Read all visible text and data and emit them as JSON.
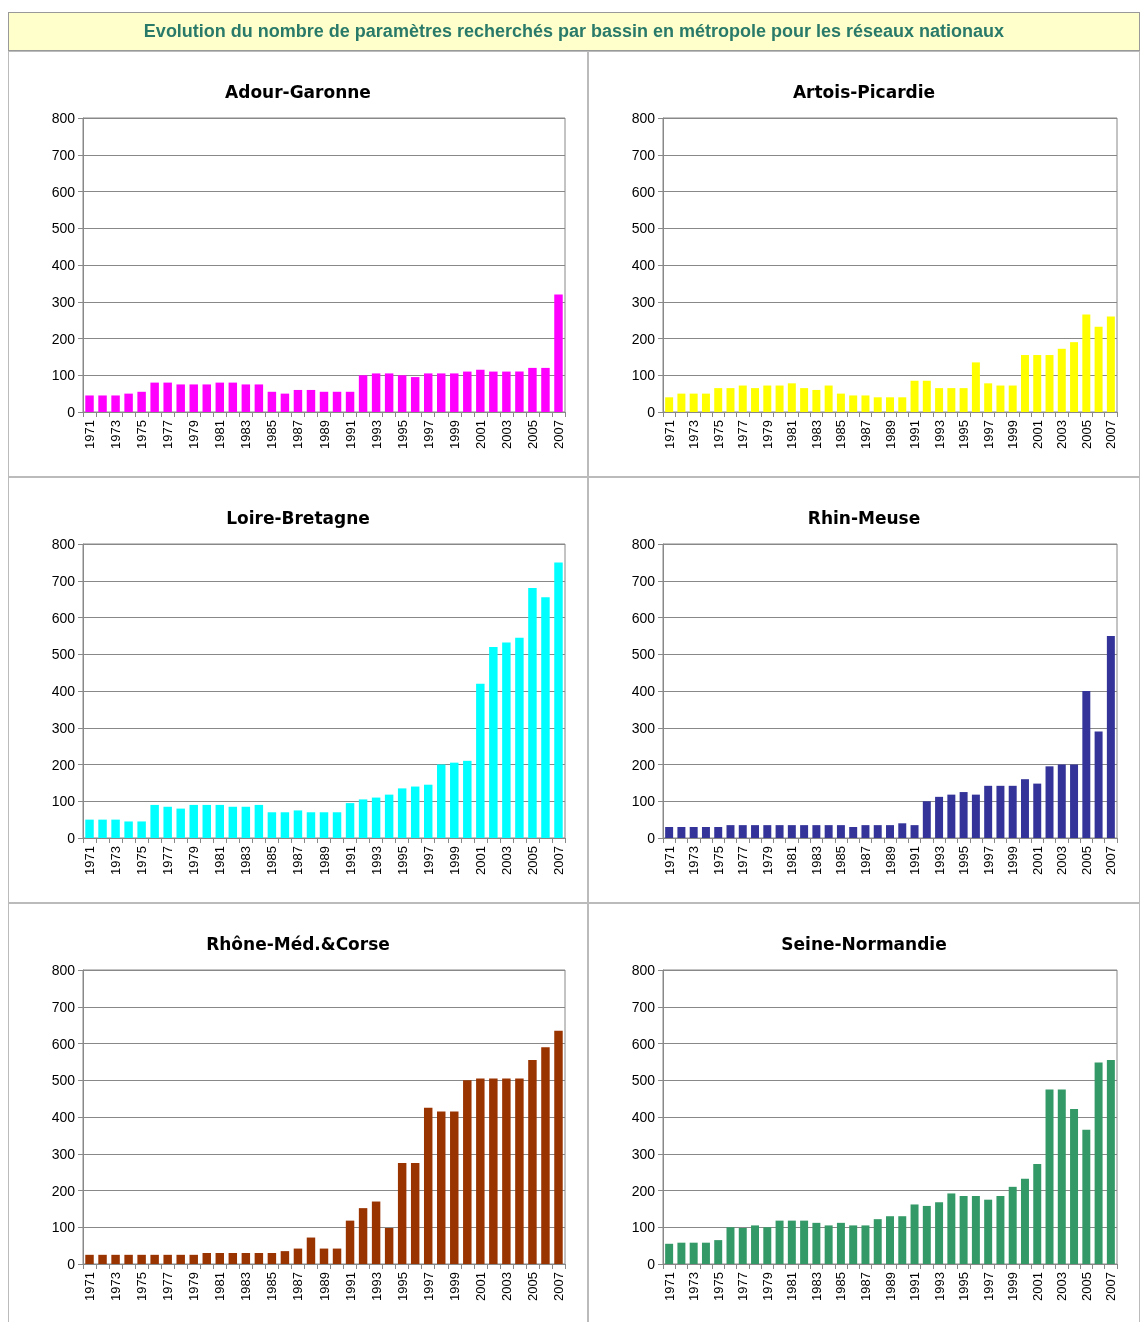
{
  "chart_data": [
    {
      "type": "other",
      "title": "Evolution du nombre de paramètres recherchés par bassin en métropole pour les réseaux nationaux"
    },
    {
      "type": "bar",
      "title": "Adour-Garonne",
      "categories": [
        "1971",
        null,
        "1973",
        null,
        "1975",
        null,
        "1977",
        null,
        "1979",
        null,
        "1981",
        null,
        "1983",
        null,
        "1985",
        null,
        "1987",
        null,
        "1989",
        null,
        "1991",
        null,
        "1993",
        null,
        "1995",
        null,
        "1997",
        null,
        "1999",
        null,
        "2001",
        null,
        "2003",
        null,
        "2005",
        null,
        "2007"
      ],
      "color": "#ff00ff",
      "values": [
        45,
        45,
        45,
        50,
        55,
        80,
        80,
        75,
        75,
        75,
        80,
        80,
        75,
        75,
        55,
        50,
        60,
        60,
        55,
        55,
        55,
        100,
        105,
        105,
        100,
        95,
        105,
        105,
        105,
        110,
        115,
        110,
        110,
        110,
        120,
        120,
        320
      ],
      "ylim": [
        0,
        800
      ],
      "yticks": [
        0,
        100,
        200,
        300,
        400,
        500,
        600,
        700,
        800
      ],
      "grid": "y"
    },
    {
      "type": "bar",
      "title": "Artois-Picardie",
      "categories": [
        "1971",
        null,
        "1973",
        null,
        "1975",
        null,
        "1977",
        null,
        "1979",
        null,
        "1981",
        null,
        "1983",
        null,
        "1985",
        null,
        "1987",
        null,
        "1989",
        null,
        "1991",
        null,
        "1993",
        null,
        "1995",
        null,
        "1997",
        null,
        "1999",
        null,
        "2001",
        null,
        "2003",
        null,
        "2005",
        null,
        "2007"
      ],
      "color": "#ffff00",
      "values": [
        40,
        50,
        50,
        50,
        65,
        65,
        72,
        65,
        72,
        72,
        78,
        65,
        60,
        72,
        50,
        45,
        45,
        40,
        40,
        40,
        85,
        85,
        65,
        65,
        65,
        135,
        78,
        72,
        72,
        155,
        155,
        155,
        172,
        190,
        265,
        232,
        260
      ],
      "ylim": [
        0,
        800
      ],
      "yticks": [
        0,
        100,
        200,
        300,
        400,
        500,
        600,
        700,
        800
      ],
      "grid": "y"
    },
    {
      "type": "bar",
      "title": "Loire-Bretagne",
      "categories": [
        "1971",
        null,
        "1973",
        null,
        "1975",
        null,
        "1977",
        null,
        "1979",
        null,
        "1981",
        null,
        "1983",
        null,
        "1985",
        null,
        "1987",
        null,
        "1989",
        null,
        "1991",
        null,
        "1993",
        null,
        "1995",
        null,
        "1997",
        null,
        "1999",
        null,
        "2001",
        null,
        "2003",
        null,
        "2005",
        null,
        "2007"
      ],
      "color": "#00ffff",
      "values": [
        50,
        50,
        50,
        45,
        45,
        90,
        85,
        80,
        90,
        90,
        90,
        85,
        85,
        90,
        70,
        70,
        75,
        70,
        70,
        70,
        95,
        105,
        110,
        118,
        135,
        140,
        145,
        200,
        205,
        210,
        420,
        520,
        532,
        545,
        680,
        655,
        750
      ],
      "ylim": [
        0,
        800
      ],
      "yticks": [
        0,
        100,
        200,
        300,
        400,
        500,
        600,
        700,
        800
      ],
      "grid": "y"
    },
    {
      "type": "bar",
      "title": "Rhin-Meuse",
      "categories": [
        "1971",
        null,
        "1973",
        null,
        "1975",
        null,
        "1977",
        null,
        "1979",
        null,
        "1981",
        null,
        "1983",
        null,
        "1985",
        null,
        "1987",
        null,
        "1989",
        null,
        "1991",
        null,
        "1993",
        null,
        "1995",
        null,
        "1997",
        null,
        "1999",
        null,
        "2001",
        null,
        "2003",
        null,
        "2005",
        null,
        "2007"
      ],
      "color": "#333399",
      "values": [
        30,
        30,
        30,
        30,
        30,
        35,
        35,
        35,
        35,
        35,
        35,
        35,
        35,
        35,
        35,
        30,
        35,
        35,
        35,
        40,
        35,
        100,
        112,
        118,
        125,
        118,
        142,
        142,
        142,
        160,
        148,
        195,
        200,
        200,
        400,
        290,
        550
      ],
      "ylim": [
        0,
        800
      ],
      "yticks": [
        0,
        100,
        200,
        300,
        400,
        500,
        600,
        700,
        800
      ],
      "grid": "y"
    },
    {
      "type": "bar",
      "title": "Rhône-Méd.&Corse",
      "categories": [
        "1971",
        null,
        "1973",
        null,
        "1975",
        null,
        "1977",
        null,
        "1979",
        null,
        "1981",
        null,
        "1983",
        null,
        "1985",
        null,
        "1987",
        null,
        "1989",
        null,
        "1991",
        null,
        "1993",
        null,
        "1995",
        null,
        "1997",
        null,
        "1999",
        null,
        "2001",
        null,
        "2003",
        null,
        "2005",
        null,
        "2007"
      ],
      "color": "#993300",
      "values": [
        25,
        25,
        25,
        25,
        25,
        25,
        25,
        25,
        25,
        30,
        30,
        30,
        30,
        30,
        30,
        35,
        42,
        72,
        42,
        42,
        118,
        152,
        170,
        98,
        275,
        275,
        425,
        415,
        415,
        500,
        505,
        505,
        505,
        505,
        555,
        590,
        635
      ],
      "ylim": [
        0,
        800
      ],
      "yticks": [
        0,
        100,
        200,
        300,
        400,
        500,
        600,
        700,
        800
      ],
      "grid": "y"
    },
    {
      "type": "bar",
      "title": "Seine-Normandie",
      "categories": [
        "1971",
        null,
        "1973",
        null,
        "1975",
        null,
        "1977",
        null,
        "1979",
        null,
        "1981",
        null,
        "1983",
        null,
        "1985",
        null,
        "1987",
        null,
        "1989",
        null,
        "1991",
        null,
        "1993",
        null,
        "1995",
        null,
        "1997",
        null,
        "1999",
        null,
        "2001",
        null,
        "2003",
        null,
        "2005",
        null,
        "2007"
      ],
      "color": "#339966",
      "values": [
        55,
        58,
        58,
        58,
        65,
        100,
        98,
        105,
        100,
        118,
        118,
        118,
        112,
        105,
        112,
        105,
        105,
        122,
        130,
        130,
        162,
        158,
        168,
        192,
        185,
        185,
        175,
        185,
        210,
        232,
        272,
        475,
        475,
        422,
        365,
        548,
        555
      ],
      "ylim": [
        0,
        800
      ],
      "yticks": [
        0,
        100,
        200,
        300,
        400,
        500,
        600,
        700,
        800
      ],
      "grid": "y"
    }
  ]
}
